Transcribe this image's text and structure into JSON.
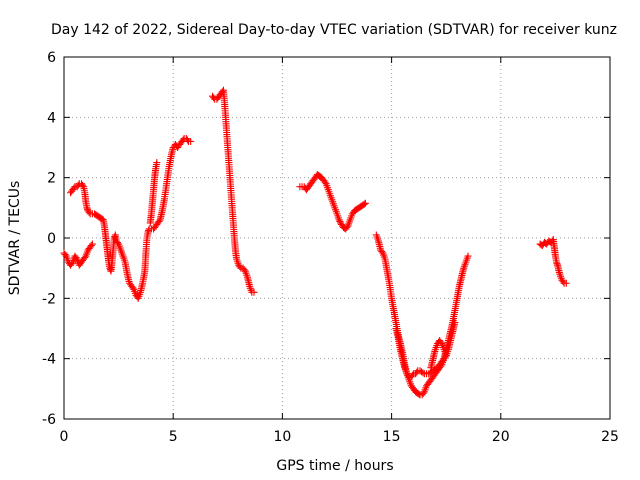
{
  "chart_data": {
    "type": "scatter",
    "title": "Day 142 of 2022, Sidereal Day-to-day VTEC variation (SDTVAR) for receiver kunz",
    "xlabel": "GPS time / hours",
    "ylabel": "SDTVAR / TECUs",
    "xlim": [
      0,
      25
    ],
    "ylim": [
      -6,
      6
    ],
    "xticks": [
      0,
      5,
      10,
      15,
      20,
      25
    ],
    "yticks": [
      -6,
      -4,
      -2,
      0,
      2,
      4,
      6
    ],
    "grid": true,
    "legend": "none",
    "marker": "plus",
    "color": "#ff0000",
    "segments": [
      [
        [
          0.0,
          -0.5
        ],
        [
          0.1,
          -0.6
        ],
        [
          0.2,
          -0.8
        ],
        [
          0.3,
          -0.9
        ],
        [
          0.4,
          -0.8
        ],
        [
          0.5,
          -0.6
        ],
        [
          0.6,
          -0.7
        ],
        [
          0.7,
          -0.9
        ],
        [
          0.8,
          -0.8
        ],
        [
          0.9,
          -0.7
        ],
        [
          1.0,
          -0.6
        ],
        [
          1.1,
          -0.4
        ],
        [
          1.2,
          -0.3
        ],
        [
          1.3,
          -0.2
        ]
      ],
      [
        [
          0.3,
          1.5
        ],
        [
          0.4,
          1.6
        ],
        [
          0.5,
          1.7
        ],
        [
          0.6,
          1.7
        ],
        [
          0.7,
          1.8
        ],
        [
          0.8,
          1.8
        ],
        [
          0.9,
          1.7
        ],
        [
          0.95,
          1.5
        ],
        [
          1.0,
          1.2
        ],
        [
          1.05,
          1.0
        ],
        [
          1.1,
          0.9
        ],
        [
          1.2,
          0.8
        ],
        [
          1.3,
          0.8
        ],
        [
          1.4,
          0.8
        ],
        [
          1.5,
          0.75
        ],
        [
          1.6,
          0.7
        ],
        [
          1.7,
          0.65
        ],
        [
          1.8,
          0.6
        ],
        [
          1.85,
          0.4
        ],
        [
          1.9,
          0.1
        ],
        [
          1.95,
          -0.2
        ],
        [
          2.0,
          -0.5
        ],
        [
          2.05,
          -0.8
        ],
        [
          2.1,
          -1.0
        ],
        [
          2.15,
          -1.1
        ],
        [
          2.2,
          -0.8
        ],
        [
          2.25,
          -0.4
        ],
        [
          2.3,
          0.0
        ],
        [
          2.35,
          0.1
        ],
        [
          2.4,
          -0.1
        ],
        [
          2.5,
          -0.2
        ],
        [
          2.6,
          -0.4
        ],
        [
          2.7,
          -0.6
        ],
        [
          2.8,
          -0.8
        ],
        [
          2.9,
          -1.2
        ],
        [
          3.0,
          -1.5
        ],
        [
          3.1,
          -1.6
        ],
        [
          3.2,
          -1.7
        ],
        [
          3.3,
          -1.9
        ],
        [
          3.4,
          -2.0
        ],
        [
          3.5,
          -1.8
        ],
        [
          3.6,
          -1.5
        ],
        [
          3.7,
          -1.1
        ],
        [
          3.75,
          -0.5
        ],
        [
          3.8,
          0.0
        ],
        [
          3.85,
          0.2
        ],
        [
          3.9,
          0.3
        ],
        [
          4.0,
          0.3
        ]
      ],
      [
        [
          3.95,
          0.5
        ],
        [
          4.0,
          0.8
        ],
        [
          4.05,
          1.2
        ],
        [
          4.1,
          1.6
        ],
        [
          4.15,
          2.0
        ],
        [
          4.2,
          2.3
        ],
        [
          4.25,
          2.5
        ]
      ],
      [
        [
          4.1,
          0.3
        ],
        [
          4.2,
          0.4
        ],
        [
          4.3,
          0.5
        ],
        [
          4.4,
          0.6
        ],
        [
          4.5,
          0.9
        ],
        [
          4.6,
          1.3
        ],
        [
          4.7,
          1.8
        ],
        [
          4.8,
          2.3
        ],
        [
          4.9,
          2.7
        ],
        [
          5.0,
          3.0
        ],
        [
          5.1,
          3.1
        ],
        [
          5.2,
          3.0
        ],
        [
          5.3,
          3.1
        ],
        [
          5.4,
          3.2
        ],
        [
          5.5,
          3.3
        ],
        [
          5.6,
          3.3
        ],
        [
          5.7,
          3.2
        ],
        [
          5.8,
          3.2
        ]
      ],
      [
        [
          6.8,
          4.7
        ],
        [
          6.9,
          4.6
        ],
        [
          7.0,
          4.6
        ],
        [
          7.1,
          4.7
        ],
        [
          7.2,
          4.8
        ],
        [
          7.3,
          4.9
        ],
        [
          7.35,
          4.5
        ],
        [
          7.4,
          4.0
        ],
        [
          7.45,
          3.5
        ],
        [
          7.5,
          3.0
        ],
        [
          7.55,
          2.5
        ],
        [
          7.6,
          2.0
        ],
        [
          7.65,
          1.5
        ],
        [
          7.7,
          1.0
        ],
        [
          7.75,
          0.5
        ],
        [
          7.8,
          0.0
        ],
        [
          7.85,
          -0.4
        ],
        [
          7.9,
          -0.7
        ],
        [
          8.0,
          -0.9
        ],
        [
          8.1,
          -1.0
        ],
        [
          8.2,
          -1.0
        ],
        [
          8.3,
          -1.1
        ],
        [
          8.4,
          -1.3
        ],
        [
          8.5,
          -1.6
        ],
        [
          8.6,
          -1.8
        ],
        [
          8.7,
          -1.8
        ]
      ],
      [
        [
          10.8,
          1.7
        ],
        [
          10.9,
          1.7
        ],
        [
          11.0,
          1.7
        ],
        [
          11.1,
          1.6
        ],
        [
          11.2,
          1.7
        ],
        [
          11.3,
          1.8
        ],
        [
          11.4,
          1.9
        ],
        [
          11.5,
          2.0
        ],
        [
          11.6,
          2.1
        ],
        [
          11.7,
          2.05
        ],
        [
          11.8,
          2.0
        ],
        [
          11.9,
          1.9
        ],
        [
          12.0,
          1.8
        ],
        [
          12.1,
          1.6
        ],
        [
          12.2,
          1.4
        ],
        [
          12.3,
          1.2
        ],
        [
          12.4,
          1.0
        ],
        [
          12.5,
          0.8
        ],
        [
          12.6,
          0.6
        ],
        [
          12.7,
          0.45
        ],
        [
          12.8,
          0.35
        ],
        [
          12.9,
          0.3
        ],
        [
          13.0,
          0.4
        ],
        [
          13.1,
          0.6
        ],
        [
          13.2,
          0.8
        ],
        [
          13.3,
          0.9
        ],
        [
          13.4,
          0.95
        ],
        [
          13.5,
          1.0
        ],
        [
          13.6,
          1.05
        ],
        [
          13.7,
          1.1
        ],
        [
          13.8,
          1.15
        ]
      ],
      [
        [
          14.3,
          0.1
        ],
        [
          14.4,
          -0.1
        ],
        [
          14.5,
          -0.4
        ],
        [
          14.6,
          -0.5
        ],
        [
          14.7,
          -0.7
        ],
        [
          14.8,
          -1.1
        ],
        [
          14.9,
          -1.5
        ],
        [
          15.0,
          -2.0
        ],
        [
          15.1,
          -2.4
        ],
        [
          15.2,
          -2.8
        ],
        [
          15.3,
          -3.2
        ],
        [
          15.4,
          -3.5
        ],
        [
          15.5,
          -3.8
        ],
        [
          15.6,
          -4.2
        ],
        [
          15.7,
          -4.5
        ],
        [
          15.8,
          -4.7
        ],
        [
          15.9,
          -4.9
        ],
        [
          16.0,
          -5.0
        ],
        [
          16.1,
          -5.1
        ],
        [
          16.2,
          -5.15
        ],
        [
          16.3,
          -5.2
        ],
        [
          16.4,
          -5.2
        ],
        [
          16.5,
          -5.1
        ],
        [
          16.6,
          -4.9
        ],
        [
          16.7,
          -4.8
        ],
        [
          16.8,
          -4.7
        ],
        [
          16.9,
          -4.6
        ],
        [
          17.0,
          -4.5
        ],
        [
          17.1,
          -4.4
        ],
        [
          17.2,
          -4.3
        ],
        [
          17.3,
          -4.2
        ],
        [
          17.4,
          -4.0
        ],
        [
          17.5,
          -3.7
        ],
        [
          17.6,
          -3.4
        ],
        [
          17.7,
          -3.1
        ],
        [
          17.8,
          -2.8
        ],
        [
          17.9,
          -2.4
        ],
        [
          18.0,
          -2.0
        ],
        [
          18.1,
          -1.6
        ],
        [
          18.2,
          -1.3
        ],
        [
          18.3,
          -1.0
        ],
        [
          18.4,
          -0.8
        ],
        [
          18.5,
          -0.6
        ]
      ],
      [
        [
          15.2,
          -3.0
        ],
        [
          15.3,
          -3.3
        ],
        [
          15.4,
          -3.7
        ],
        [
          15.5,
          -4.0
        ],
        [
          15.6,
          -4.3
        ],
        [
          15.7,
          -4.5
        ],
        [
          15.8,
          -4.6
        ],
        [
          15.9,
          -4.6
        ],
        [
          16.0,
          -4.5
        ],
        [
          16.1,
          -4.5
        ],
        [
          16.2,
          -4.4
        ],
        [
          16.3,
          -4.4
        ],
        [
          16.5,
          -4.5
        ],
        [
          16.7,
          -4.5
        ],
        [
          16.9,
          -4.4
        ],
        [
          17.1,
          -4.3
        ],
        [
          17.3,
          -4.1
        ],
        [
          17.5,
          -3.9
        ],
        [
          17.6,
          -3.7
        ],
        [
          17.7,
          -3.4
        ],
        [
          17.8,
          -3.1
        ],
        [
          17.9,
          -2.8
        ]
      ],
      [
        [
          16.8,
          -4.3
        ],
        [
          16.9,
          -4.0
        ],
        [
          17.0,
          -3.7
        ],
        [
          17.1,
          -3.5
        ],
        [
          17.2,
          -3.4
        ],
        [
          17.3,
          -3.5
        ],
        [
          17.4,
          -3.7
        ],
        [
          17.5,
          -3.9
        ]
      ],
      [
        [
          21.8,
          -0.2
        ],
        [
          21.9,
          -0.25
        ],
        [
          22.0,
          -0.15
        ],
        [
          22.1,
          -0.2
        ],
        [
          22.2,
          -0.1
        ],
        [
          22.3,
          -0.15
        ],
        [
          22.4,
          -0.05
        ],
        [
          22.45,
          -0.3
        ],
        [
          22.5,
          -0.6
        ],
        [
          22.55,
          -0.8
        ],
        [
          22.6,
          -0.9
        ],
        [
          22.7,
          -1.2
        ],
        [
          22.8,
          -1.4
        ],
        [
          22.9,
          -1.5
        ],
        [
          23.0,
          -1.5
        ]
      ]
    ]
  }
}
